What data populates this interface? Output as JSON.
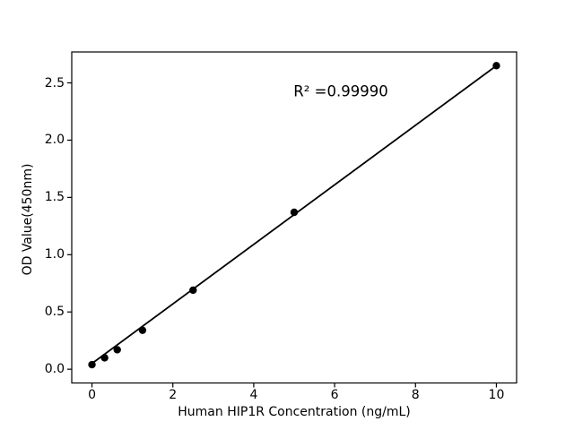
{
  "figure": {
    "background": "#ffffff"
  },
  "chart_data": {
    "type": "scatter",
    "title": "",
    "xlabel": "Human HIP1R Concentration (ng/mL)",
    "ylabel": "OD Value(450nm)",
    "annotation": "R² =0.99990",
    "x": [
      0,
      0.3125,
      0.625,
      1.25,
      2.5,
      5,
      10
    ],
    "y": [
      0.04,
      0.1,
      0.17,
      0.34,
      0.69,
      1.37,
      2.65
    ],
    "trendline": {
      "x": [
        0,
        10
      ],
      "y": [
        0.05,
        2.65
      ]
    },
    "x_ticks": {
      "values": [
        0,
        2,
        4,
        6,
        8,
        10
      ],
      "labels": [
        "0",
        "2",
        "4",
        "6",
        "8",
        "10"
      ]
    },
    "y_ticks": {
      "values": [
        0,
        0.5,
        1.0,
        1.5,
        2.0,
        2.5
      ],
      "labels": [
        "0.0",
        "0.5",
        "1.0",
        "1.5",
        "2.0",
        "2.5"
      ]
    },
    "xlim": [
      -0.5,
      10.5
    ],
    "ylim": [
      -0.12,
      2.77
    ],
    "grid": false,
    "legend_position": "none",
    "marker_color": "#000000",
    "line_color": "#000000",
    "axis_color": "#000000"
  }
}
